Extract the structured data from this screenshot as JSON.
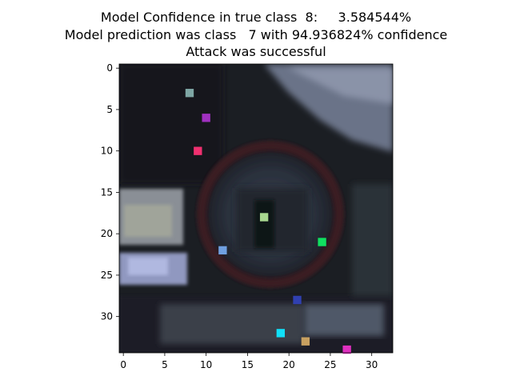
{
  "title": {
    "line1": "Model Confidence in true class  8:     3.584544%",
    "line2": "Model prediction was class   7 with 94.936824% confidence",
    "line3": "Attack was successful"
  },
  "image": {
    "grid_cols": 33,
    "grid_rows": 35,
    "content": "blurred photo of a round traffic sign with red ring and dark interior",
    "perturbed_pixels": [
      {
        "x": 8,
        "y": 3,
        "color": "#7fa7a5"
      },
      {
        "x": 10,
        "y": 6,
        "color": "#a030c0"
      },
      {
        "x": 9,
        "y": 10,
        "color": "#f03070"
      },
      {
        "x": 17,
        "y": 18,
        "color": "#a8d890"
      },
      {
        "x": 24,
        "y": 21,
        "color": "#10e060"
      },
      {
        "x": 12,
        "y": 22,
        "color": "#70a0e0"
      },
      {
        "x": 21,
        "y": 28,
        "color": "#3040b0"
      },
      {
        "x": 19,
        "y": 32,
        "color": "#10e0f8"
      },
      {
        "x": 22,
        "y": 33,
        "color": "#c8a060"
      },
      {
        "x": 27,
        "y": 34,
        "color": "#e030c0"
      }
    ]
  },
  "axes": {
    "x_ticks": [
      "0",
      "5",
      "10",
      "15",
      "20",
      "25",
      "30"
    ],
    "y_ticks": [
      "0",
      "5",
      "10",
      "15",
      "20",
      "25",
      "30"
    ]
  }
}
